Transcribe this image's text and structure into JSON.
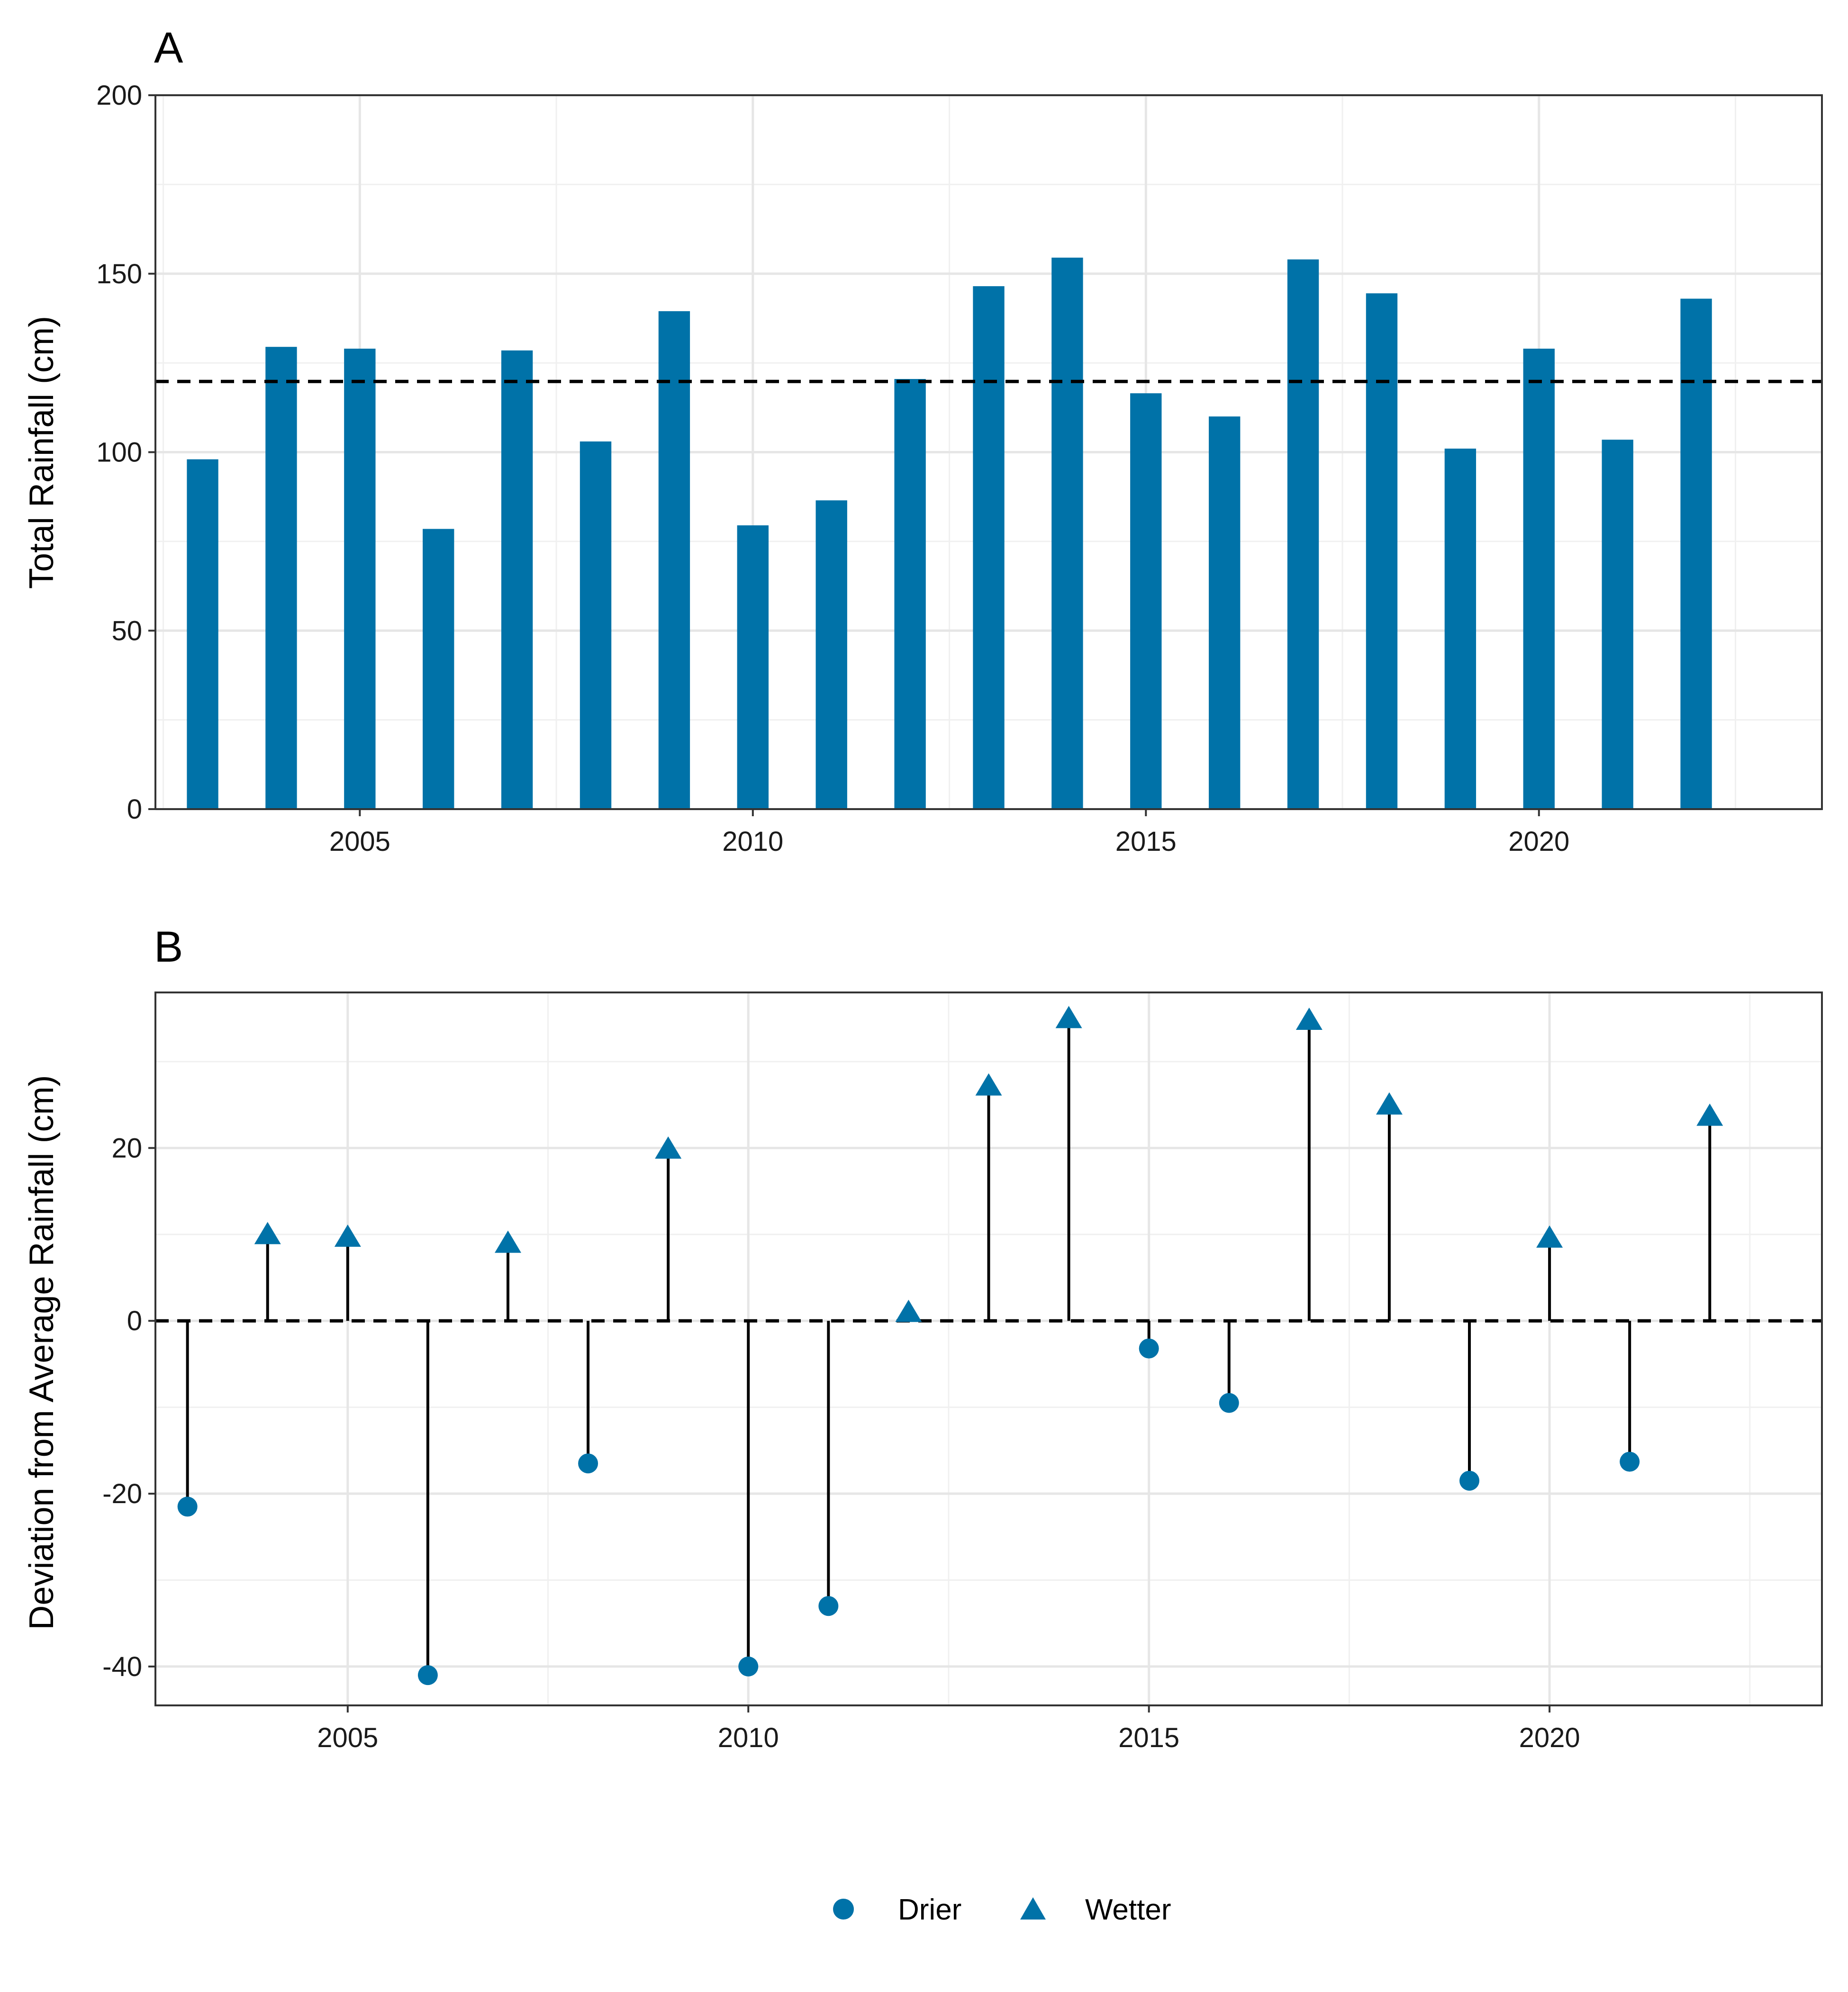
{
  "chart_data": [
    {
      "panel": "A",
      "type": "bar",
      "title": "",
      "xlabel": "",
      "ylabel": "Total Rainfall (cm)",
      "x": [
        2003,
        2004,
        2005,
        2006,
        2007,
        2008,
        2009,
        2010,
        2011,
        2012,
        2013,
        2014,
        2015,
        2016,
        2017,
        2018,
        2019,
        2020,
        2021,
        2022
      ],
      "values": [
        98,
        129.5,
        129,
        78.5,
        128.5,
        103,
        139.5,
        79.5,
        86.5,
        120.5,
        146.5,
        154.5,
        116.5,
        110,
        154,
        144.5,
        101,
        129,
        103.5,
        143
      ],
      "reference_line": 119.8,
      "xlim": [
        2002.4,
        2023.6
      ],
      "ylim": [
        0,
        200
      ],
      "x_ticks": [
        2005,
        2010,
        2015,
        2020
      ],
      "y_ticks": [
        0,
        50,
        100,
        150,
        200
      ],
      "grid": true,
      "color": "#0072A8"
    },
    {
      "panel": "B",
      "type": "scatter",
      "subtype": "lollipop",
      "title": "",
      "xlabel": "",
      "ylabel": "Deviation from Average Rainfall (cm)",
      "x": [
        2003,
        2004,
        2005,
        2006,
        2007,
        2008,
        2009,
        2010,
        2011,
        2012,
        2013,
        2014,
        2015,
        2016,
        2017,
        2018,
        2019,
        2020,
        2021,
        2022
      ],
      "values": [
        -21.5,
        9.8,
        9.5,
        -41,
        8.8,
        -16.5,
        19.7,
        -40,
        -33,
        0.8,
        27,
        34.8,
        -3.2,
        -9.5,
        34.6,
        24.8,
        -18.5,
        9.4,
        -16.3,
        23.5
      ],
      "reference_line": 0,
      "xlim": [
        2002.6,
        2023.4
      ],
      "ylim": [
        -44.5,
        38
      ],
      "x_ticks": [
        2005,
        2010,
        2015,
        2020
      ],
      "y_ticks": [
        -40,
        -20,
        0,
        20
      ],
      "grid": true,
      "color": "#0072A8",
      "legend": {
        "position": "bottom",
        "entries": [
          {
            "label": "Drier",
            "shape": "circle"
          },
          {
            "label": "Wetter",
            "shape": "triangle"
          }
        ]
      }
    }
  ]
}
